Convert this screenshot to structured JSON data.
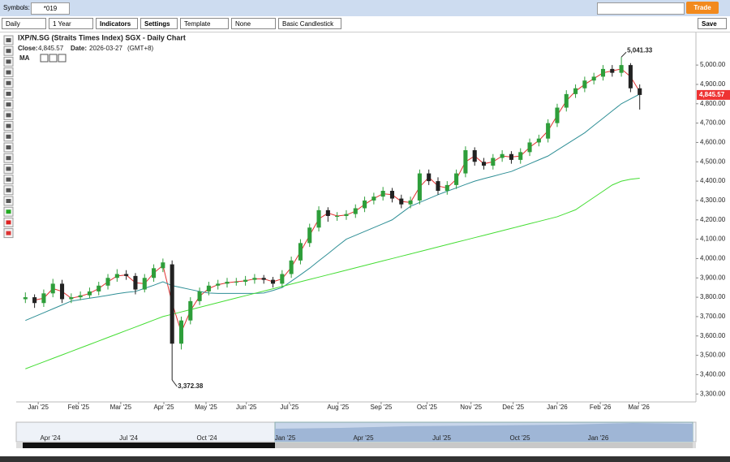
{
  "toolbar": {
    "symbols_label": "Symbols:",
    "symbol": "*019",
    "trade": "Trade",
    "interval": "Daily",
    "range": "1 Year",
    "indicators": "Indicators",
    "settings": "Settings",
    "template": "Template",
    "overlay": "None",
    "chart_style": "Basic Candlestick",
    "save": "Save"
  },
  "chart_data": {
    "type": "candlestick",
    "title": "IXP/N.SG (Straits Times Index) SGX - Daily Chart",
    "close_label": "Close:",
    "last_close": "4,845.57",
    "date_label": "Date:",
    "date": "2026-03-27",
    "timezone": "(GMT+8)",
    "indicator": "MA",
    "high_label": "5,041.33",
    "low_label": "3,372.38",
    "categories": [
      null,
      null,
      null,
      null,
      null,
      null,
      null,
      null,
      null,
      null,
      null,
      null,
      null,
      null,
      null,
      null,
      null,
      null,
      null,
      null,
      null,
      null,
      null,
      null,
      null,
      null,
      null,
      null,
      null,
      null,
      null,
      null,
      null,
      null,
      null,
      null,
      null,
      null,
      null,
      null,
      null,
      null,
      null,
      null,
      null,
      null,
      null,
      null,
      null,
      null,
      null,
      null,
      null,
      null,
      null,
      null,
      null,
      null,
      null,
      null,
      null,
      null,
      null,
      null,
      null,
      null,
      null,
      null
    ],
    "open": [
      3790,
      3800,
      3770,
      3820,
      3870,
      3790,
      3800,
      3810,
      3830,
      3860,
      3900,
      3920,
      3910,
      3840,
      3900,
      3950,
      3970,
      3560,
      3680,
      3780,
      3830,
      3860,
      3870,
      3880,
      3880,
      3890,
      3900,
      3890,
      3870,
      3920,
      3990,
      4080,
      4160,
      4250,
      4220,
      4220,
      4230,
      4260,
      4300,
      4320,
      4350,
      4310,
      4280,
      4300,
      4440,
      4400,
      4350,
      4380,
      4440,
      4560,
      4500,
      4480,
      4520,
      4540,
      4510,
      4550,
      4600,
      4620,
      4700,
      4780,
      4850,
      4880,
      4920,
      4940,
      4980,
      4960,
      5000,
      4880
    ],
    "high": [
      3825,
      3815,
      3840,
      3895,
      3890,
      3820,
      3830,
      3850,
      3880,
      3920,
      3945,
      3940,
      3925,
      3920,
      3970,
      4000,
      3990,
      3700,
      3800,
      3850,
      3880,
      3890,
      3900,
      3900,
      3910,
      3920,
      3915,
      3905,
      3940,
      4010,
      4100,
      4180,
      4270,
      4265,
      4240,
      4250,
      4280,
      4320,
      4340,
      4370,
      4365,
      4330,
      4320,
      4460,
      4460,
      4420,
      4400,
      4460,
      4580,
      4575,
      4520,
      4540,
      4560,
      4555,
      4570,
      4620,
      4640,
      4720,
      4800,
      4870,
      4900,
      4940,
      4960,
      5000,
      5000,
      5041.33,
      5010,
      4900
    ],
    "low": [
      3770,
      3745,
      3750,
      3800,
      3770,
      3770,
      3785,
      3795,
      3810,
      3840,
      3880,
      3890,
      3815,
      3825,
      3880,
      3930,
      3372.38,
      3530,
      3660,
      3760,
      3810,
      3840,
      3850,
      3860,
      3860,
      3870,
      3870,
      3850,
      3850,
      3900,
      3970,
      4060,
      4140,
      4190,
      4195,
      4200,
      4210,
      4240,
      4280,
      4300,
      4290,
      4260,
      4260,
      4280,
      4380,
      4330,
      4330,
      4360,
      4420,
      4480,
      4460,
      4460,
      4500,
      4490,
      4490,
      4530,
      4580,
      4600,
      4680,
      4760,
      4830,
      4860,
      4900,
      4920,
      4940,
      4940,
      4860,
      4770
    ],
    "close": [
      3800,
      3770,
      3820,
      3870,
      3790,
      3800,
      3810,
      3830,
      3860,
      3900,
      3920,
      3910,
      3840,
      3900,
      3950,
      3980,
      3560,
      3680,
      3780,
      3830,
      3860,
      3870,
      3880,
      3880,
      3890,
      3900,
      3890,
      3870,
      3920,
      3990,
      4080,
      4160,
      4250,
      4220,
      4220,
      4230,
      4260,
      4300,
      4320,
      4350,
      4310,
      4280,
      4300,
      4440,
      4400,
      4350,
      4380,
      4440,
      4560,
      4500,
      4480,
      4520,
      4540,
      4510,
      4550,
      4600,
      4620,
      4700,
      4780,
      4850,
      4880,
      4920,
      4940,
      4980,
      4960,
      5000,
      4880,
      4845.57
    ],
    "up_color": "#2e9e3a",
    "down_color": "#222222",
    "series": [
      {
        "color": "#e03030",
        "values": [
          null,
          3785,
          3795,
          3845,
          3830,
          3795,
          3805,
          3820,
          3845,
          3880,
          3910,
          3915,
          3875,
          3870,
          3925,
          3965,
          3770,
          3620,
          3730,
          3805,
          3845,
          3865,
          3875,
          3880,
          3885,
          3895,
          3895,
          3880,
          3895,
          3955,
          4035,
          4120,
          4205,
          4235,
          4220,
          4225,
          4245,
          4280,
          4310,
          4335,
          4330,
          4295,
          4290,
          4370,
          4420,
          4375,
          4365,
          4410,
          4500,
          4530,
          4490,
          4500,
          4530,
          4525,
          4530,
          4575,
          4610,
          4660,
          4740,
          4815,
          4865,
          4900,
          4930,
          4960,
          4970,
          4980,
          4940,
          4862
        ]
      },
      {
        "color": "#2f8f96",
        "values": [
          3680,
          3700,
          3720,
          3740,
          3760,
          3780,
          3788,
          3795,
          3802,
          3810,
          3818,
          3825,
          3830,
          3846,
          3862,
          3880,
          3860,
          3850,
          3840,
          3830,
          3822,
          3820,
          3820,
          3820,
          3820,
          3820,
          3822,
          3835,
          3850,
          3883,
          3916,
          3950,
          3988,
          4025,
          4063,
          4100,
          4120,
          4140,
          4160,
          4180,
          4200,
          4235,
          4270,
          4290,
          4310,
          4330,
          4348,
          4365,
          4383,
          4400,
          4413,
          4425,
          4438,
          4450,
          4470,
          4490,
          4510,
          4530,
          4560,
          4590,
          4620,
          4650,
          4688,
          4725,
          4763,
          4800,
          4825,
          4850
        ]
      },
      {
        "color": "#44dd33",
        "values": [
          3430,
          3448,
          3466,
          3484,
          3502,
          3520,
          3538,
          3556,
          3574,
          3592,
          3610,
          3628,
          3646,
          3664,
          3682,
          3700,
          3712,
          3724,
          3736,
          3748,
          3760,
          3772,
          3784,
          3796,
          3808,
          3820,
          3832,
          3844,
          3856,
          3868,
          3880,
          3892,
          3904,
          3916,
          3928,
          3940,
          3952,
          3964,
          3976,
          3988,
          4000,
          4012,
          4024,
          4036,
          4048,
          4060,
          4072,
          4084,
          4096,
          4108,
          4120,
          4132,
          4144,
          4156,
          4168,
          4180,
          4192,
          4204,
          4216,
          4234,
          4252,
          4284,
          4316,
          4348,
          4380,
          4400,
          4410,
          4415
        ]
      }
    ],
    "xlim": [
      -1,
      68
    ],
    "xticks": [
      {
        "value": 1.4,
        "label": "Jan '25"
      },
      {
        "value": 5.8,
        "label": "Feb '25"
      },
      {
        "value": 10.4,
        "label": "Mar '25"
      },
      {
        "value": 15.1,
        "label": "Apr '25"
      },
      {
        "value": 19.7,
        "label": "May '25"
      },
      {
        "value": 24.1,
        "label": "Jun '25"
      },
      {
        "value": 28.8,
        "label": "Jul '25"
      },
      {
        "value": 34.1,
        "label": "Aug '25"
      },
      {
        "value": 38.8,
        "label": "Sep '25"
      },
      {
        "value": 43.8,
        "label": "Oct '25"
      },
      {
        "value": 48.6,
        "label": "Nov '25"
      },
      {
        "value": 53.2,
        "label": "Dec '25"
      },
      {
        "value": 58,
        "label": "Jan '26"
      },
      {
        "value": 62.7,
        "label": "Feb '26"
      },
      {
        "value": 66.9,
        "label": "Mar '26"
      }
    ],
    "ylim": [
      3280,
      5160
    ],
    "yticks": [
      {
        "value": 3300,
        "label": "3,300.00"
      },
      {
        "value": 3400,
        "label": "3,400.00"
      },
      {
        "value": 3500,
        "label": "3,500.00"
      },
      {
        "value": 3600,
        "label": "3,600.00"
      },
      {
        "value": 3700,
        "label": "3,700.00"
      },
      {
        "value": 3800,
        "label": "3,800.00"
      },
      {
        "value": 3900,
        "label": "3,900.00"
      },
      {
        "value": 4000,
        "label": "4,000.00"
      },
      {
        "value": 4100,
        "label": "4,100.00"
      },
      {
        "value": 4200,
        "label": "4,200.00"
      },
      {
        "value": 4300,
        "label": "4,300.00"
      },
      {
        "value": 4400,
        "label": "4,400.00"
      },
      {
        "value": 4500,
        "label": "4,500.00"
      },
      {
        "value": 4600,
        "label": "4,600.00"
      },
      {
        "value": 4700,
        "label": "4,700.00"
      },
      {
        "value": 4800,
        "label": "4,800.00"
      },
      {
        "value": 4900,
        "label": "4,900.00"
      },
      {
        "value": 5000,
        "label": "5,000.00"
      }
    ]
  },
  "navigator": {
    "labels": [
      "Apr '24",
      "Jul '24",
      "Oct '24",
      "Jan '25",
      "Apr '25",
      "Jul '25",
      "Oct '25",
      "Jan '26"
    ]
  }
}
